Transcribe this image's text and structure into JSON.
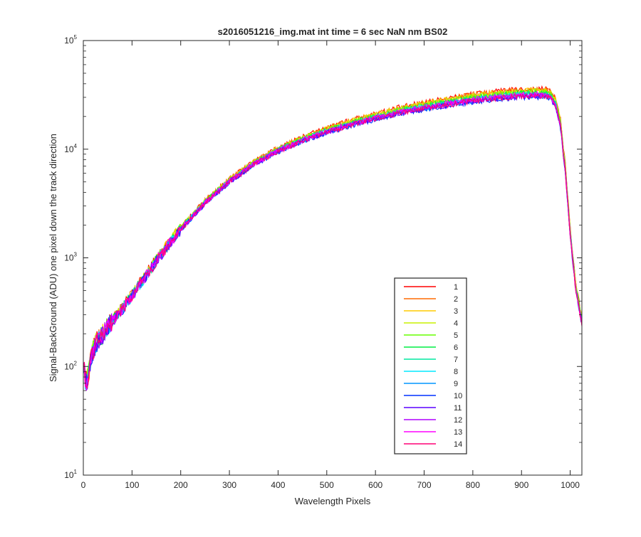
{
  "chart_data": {
    "type": "line",
    "title": "s2016051216_img.mat int time = 6 sec  NaN nm BS02",
    "xlabel": "Wavelength Pixels",
    "ylabel": "Signal-BackGround (ADU) one pixel down the track direction",
    "xlim": [
      0,
      1024
    ],
    "ylim": [
      10,
      100000
    ],
    "yscale": "log",
    "x_ticks": [
      "0",
      "100",
      "200",
      "300",
      "400",
      "500",
      "600",
      "700",
      "800",
      "900",
      "1000"
    ],
    "y_ticks": [
      {
        "base": "10",
        "exp": "1"
      },
      {
        "base": "10",
        "exp": "2"
      },
      {
        "base": "10",
        "exp": "3"
      },
      {
        "base": "10",
        "exp": "4"
      },
      {
        "base": "10",
        "exp": "5"
      }
    ],
    "legend_position": "lower-right",
    "profile": {
      "x": [
        0,
        5,
        10,
        15,
        20,
        30,
        40,
        50,
        60,
        80,
        100,
        150,
        200,
        250,
        300,
        350,
        400,
        450,
        500,
        550,
        600,
        650,
        700,
        750,
        800,
        850,
        880,
        900,
        920,
        940,
        950,
        960,
        970,
        980,
        990,
        1000,
        1010,
        1020,
        1024
      ],
      "y": [
        110,
        70,
        80,
        110,
        140,
        175,
        200,
        230,
        265,
        340,
        450,
        950,
        1850,
        3250,
        5100,
        7400,
        9800,
        12300,
        14700,
        17400,
        19800,
        22400,
        24800,
        27000,
        29200,
        31000,
        31800,
        32300,
        32600,
        32600,
        32300,
        31000,
        26500,
        17000,
        6500,
        1700,
        600,
        320,
        260
      ]
    },
    "series": [
      {
        "name": "1",
        "color": "#ff0000",
        "scale": 1.1
      },
      {
        "name": "2",
        "color": "#ff6a00",
        "scale": 1.09
      },
      {
        "name": "3",
        "color": "#ffcc00",
        "scale": 1.07
      },
      {
        "name": "4",
        "color": "#c8f000",
        "scale": 1.05
      },
      {
        "name": "5",
        "color": "#66ff00",
        "scale": 1.03
      },
      {
        "name": "6",
        "color": "#00ee44",
        "scale": 1.01
      },
      {
        "name": "7",
        "color": "#00e8a0",
        "scale": 0.99
      },
      {
        "name": "8",
        "color": "#00e8ff",
        "scale": 0.97
      },
      {
        "name": "9",
        "color": "#0096ff",
        "scale": 0.95
      },
      {
        "name": "10",
        "color": "#0030ff",
        "scale": 0.93
      },
      {
        "name": "11",
        "color": "#5a00ff",
        "scale": 0.94
      },
      {
        "name": "12",
        "color": "#b000ff",
        "scale": 0.96
      },
      {
        "name": "13",
        "color": "#ff00ff",
        "scale": 0.98
      },
      {
        "name": "14",
        "color": "#ff0077",
        "scale": 0.95
      }
    ]
  }
}
